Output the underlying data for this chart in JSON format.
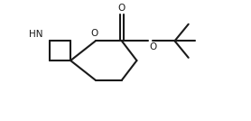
{
  "background": "#ffffff",
  "line_color": "#1a1a1a",
  "line_width": 1.5,
  "text_color": "#1a1a1a",
  "figsize": [
    2.78,
    1.34
  ],
  "dpi": 100,
  "xlim": [
    0,
    10
  ],
  "ylim": [
    0,
    5
  ],
  "spiro_x": 2.8,
  "spiro_y": 2.5,
  "azetidine_size": 0.82,
  "thp_dx": [
    0,
    1.0,
    2.05,
    2.65,
    2.05,
    1.0
  ],
  "thp_dy": [
    0,
    0.82,
    0.82,
    0.0,
    -0.82,
    -0.82
  ],
  "hn_label": "HN",
  "o_ring_label": "O",
  "o_carbonyl_label": "O",
  "o_ester_label": "O"
}
